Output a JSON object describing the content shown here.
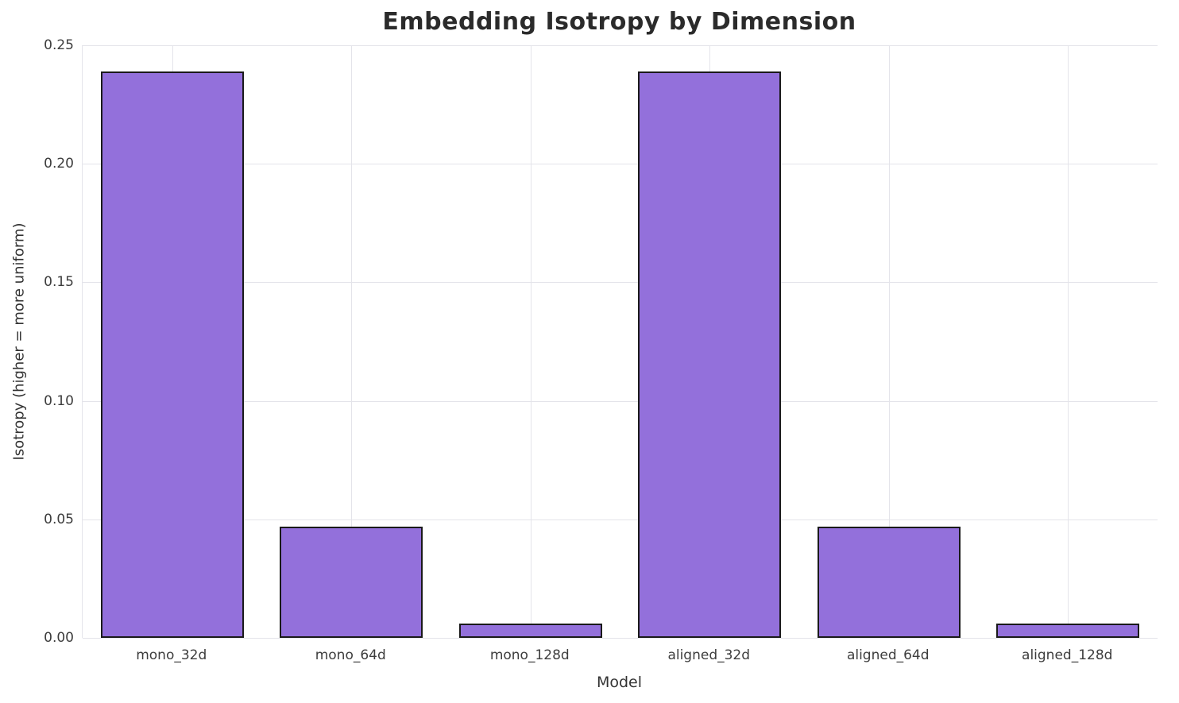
{
  "chart_data": {
    "type": "bar",
    "title": "Embedding Isotropy by Dimension",
    "xlabel": "Model",
    "ylabel": "Isotropy (higher = more uniform)",
    "categories": [
      "mono_32d",
      "mono_64d",
      "mono_128d",
      "aligned_32d",
      "aligned_64d",
      "aligned_128d"
    ],
    "values": [
      0.239,
      0.047,
      0.006,
      0.239,
      0.047,
      0.006
    ],
    "ylim": [
      0,
      0.25
    ],
    "yticks": [
      0.0,
      0.05,
      0.1,
      0.15,
      0.2,
      0.25
    ],
    "grid": true,
    "legend": "none",
    "bar_color": "#9370DB",
    "bar_edge_color": "#1a1a1a",
    "grid_color": "#e4e4ea",
    "background": "#ffffff",
    "bar_width_fraction": 0.8
  }
}
